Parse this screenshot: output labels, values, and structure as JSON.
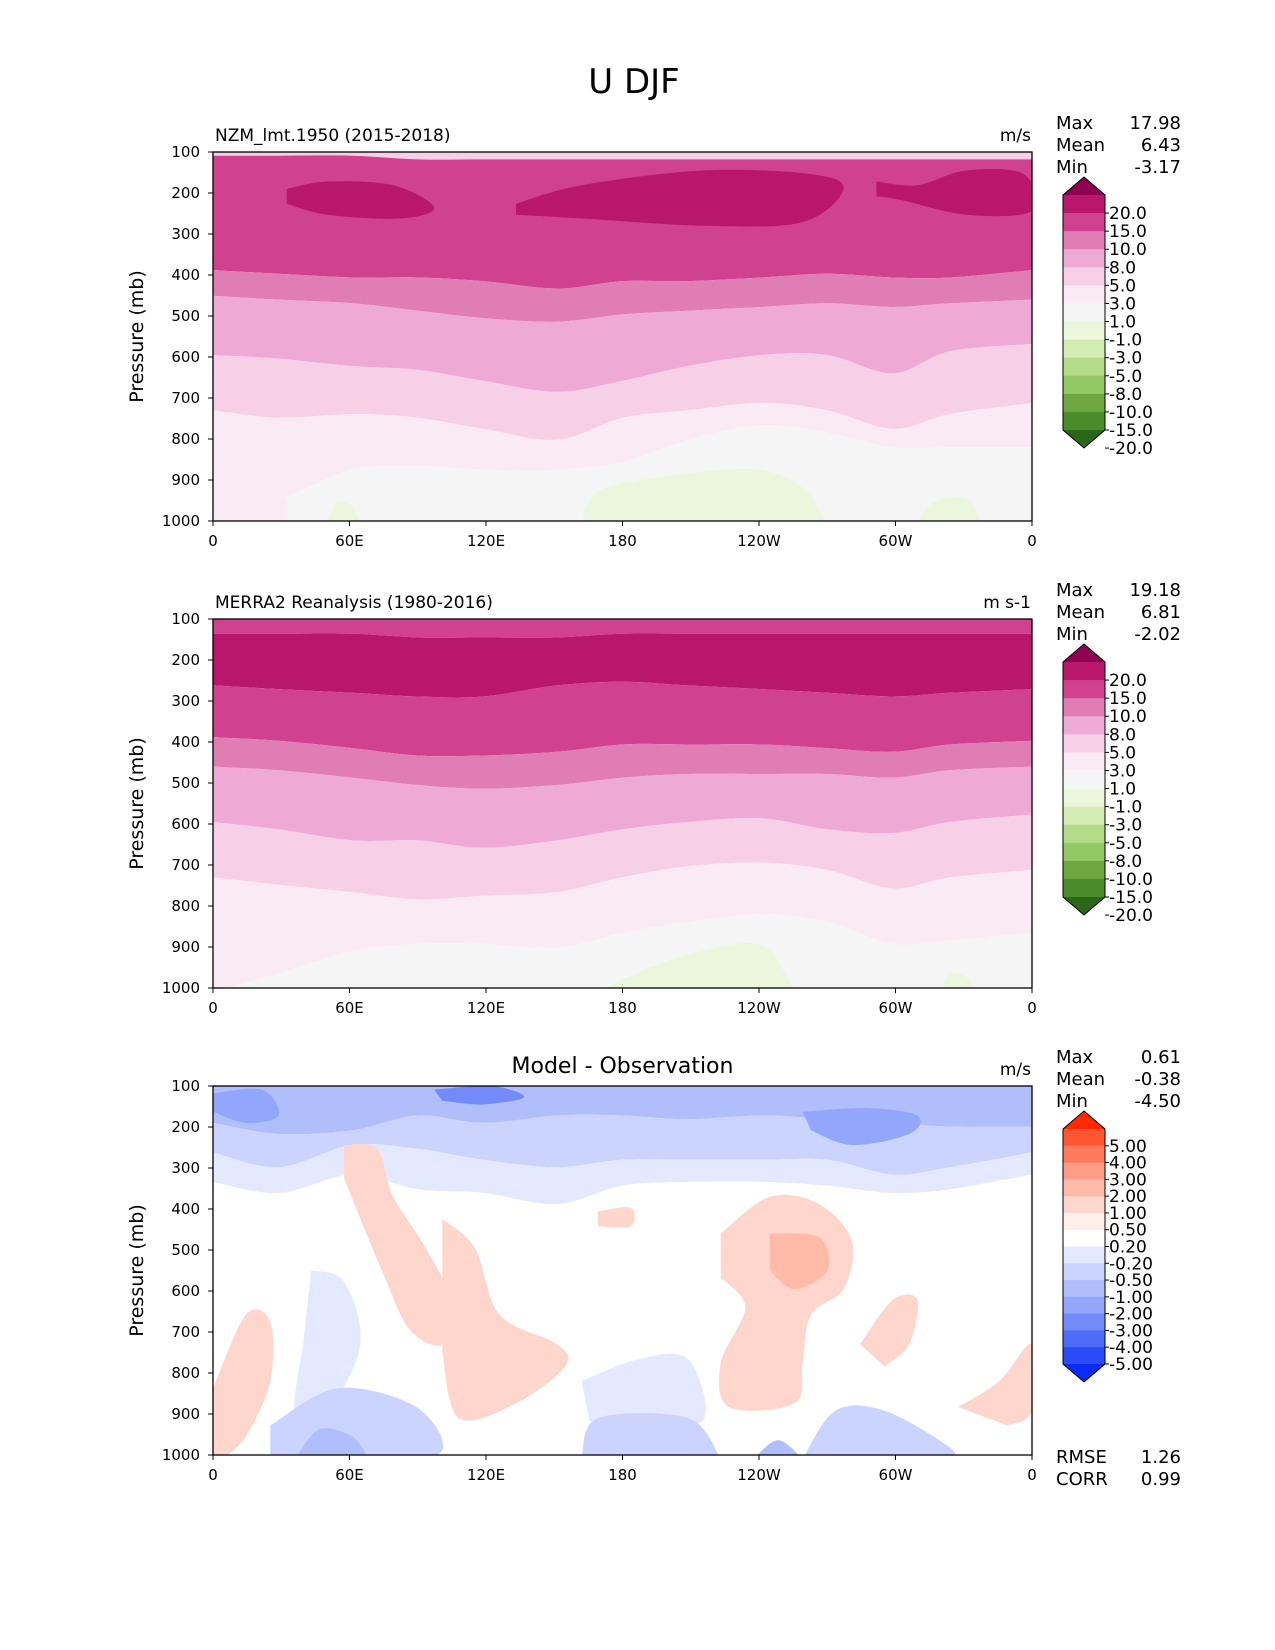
{
  "figure_title": "U DJF",
  "chart_data": [
    {
      "type": "heatmap",
      "title": "NZM_lmt.1950 (2015-2018)",
      "units": "m/s",
      "ylabel": "Pressure (mb)",
      "yticks": [
        "100",
        "200",
        "300",
        "400",
        "500",
        "600",
        "700",
        "800",
        "900",
        "1000"
      ],
      "xticks": [
        "0",
        "60E",
        "120E",
        "180",
        "120W",
        "60W",
        "0"
      ],
      "stats": [
        {
          "label": "Max",
          "value": "17.98"
        },
        {
          "label": "Mean",
          "value": "6.43"
        },
        {
          "label": "Min",
          "value": "-3.17"
        }
      ],
      "colorbar": {
        "labels": [
          "20.0",
          "15.0",
          "10.0",
          "8.0",
          "5.0",
          "3.0",
          "1.0",
          "-1.0",
          "-3.0",
          "-5.0",
          "-8.0",
          "-10.0",
          "-15.0",
          "-20.0"
        ],
        "colors": [
          "#8e0152",
          "#b8176b",
          "#d0428f",
          "#e17db5",
          "#eeaad4",
          "#f7cfe7",
          "#faeaf3",
          "#f5f5f5",
          "#ebf6dd",
          "#d3ecb4",
          "#b3dc89",
          "#92c965",
          "#6ea73f",
          "#4a8c2a",
          "#2a6716"
        ]
      },
      "bands": [
        {
          "level": "20.0",
          "fill": "#8e0152"
        },
        {
          "level": "15.0",
          "fill": "#b8176b"
        },
        {
          "level": "10.0",
          "fill": "#d0428f"
        },
        {
          "level": "8.0",
          "fill": "#e17db5"
        },
        {
          "level": "5.0",
          "fill": "#eeaad4"
        },
        {
          "level": "3.0",
          "fill": "#f7cfe7"
        },
        {
          "level": "1.0",
          "fill": "#faeaf3"
        },
        {
          "level": "-1.0",
          "fill": "#f5f5f5"
        },
        {
          "level": "-3.0",
          "fill": "#ebf6dd"
        }
      ]
    },
    {
      "type": "heatmap",
      "title": "MERRA2 Reanalysis (1980-2016)",
      "units": "m s-1",
      "ylabel": "Pressure (mb)",
      "yticks": [
        "100",
        "200",
        "300",
        "400",
        "500",
        "600",
        "700",
        "800",
        "900",
        "1000"
      ],
      "xticks": [
        "0",
        "60E",
        "120E",
        "180",
        "120W",
        "60W",
        "0"
      ],
      "stats": [
        {
          "label": "Max",
          "value": "19.18"
        },
        {
          "label": "Mean",
          "value": "6.81"
        },
        {
          "label": "Min",
          "value": "-2.02"
        }
      ],
      "colorbar": {
        "labels": [
          "20.0",
          "15.0",
          "10.0",
          "8.0",
          "5.0",
          "3.0",
          "1.0",
          "-1.0",
          "-3.0",
          "-5.0",
          "-8.0",
          "-10.0",
          "-15.0",
          "-20.0"
        ],
        "colors": [
          "#8e0152",
          "#b8176b",
          "#d0428f",
          "#e17db5",
          "#eeaad4",
          "#f7cfe7",
          "#faeaf3",
          "#f5f5f5",
          "#ebf6dd",
          "#d3ecb4",
          "#b3dc89",
          "#92c965",
          "#6ea73f",
          "#4a8c2a",
          "#2a6716"
        ]
      }
    },
    {
      "type": "heatmap",
      "title": "Model - Observation",
      "units": "m/s",
      "ylabel": "Pressure (mb)",
      "yticks": [
        "100",
        "200",
        "300",
        "400",
        "500",
        "600",
        "700",
        "800",
        "900",
        "1000"
      ],
      "xticks": [
        "0",
        "60E",
        "120E",
        "180",
        "120W",
        "60W",
        "0"
      ],
      "stats": [
        {
          "label": "Max",
          "value": "0.61"
        },
        {
          "label": "Mean",
          "value": "-0.38"
        },
        {
          "label": "Min",
          "value": "-4.50"
        }
      ],
      "colorbar": {
        "labels": [
          "5.00",
          "4.00",
          "3.00",
          "2.00",
          "1.00",
          "0.50",
          "0.20",
          "-0.20",
          "-0.50",
          "-1.00",
          "-2.00",
          "-3.00",
          "-4.00",
          "-5.00"
        ],
        "colors": [
          "#ff2a00",
          "#ff5530",
          "#ff7a5c",
          "#ff9c85",
          "#ffbaa8",
          "#ffd6cb",
          "#ffefea",
          "#ffffff",
          "#e4e9ff",
          "#cad4ff",
          "#b0bffc",
          "#92a6fb",
          "#728bf9",
          "#4f6cf9",
          "#2a4bf7",
          "#0a2cf5"
        ]
      },
      "footer_stats": [
        {
          "label": "RMSE",
          "value": "1.26"
        },
        {
          "label": "CORR",
          "value": "0.99"
        }
      ]
    }
  ]
}
